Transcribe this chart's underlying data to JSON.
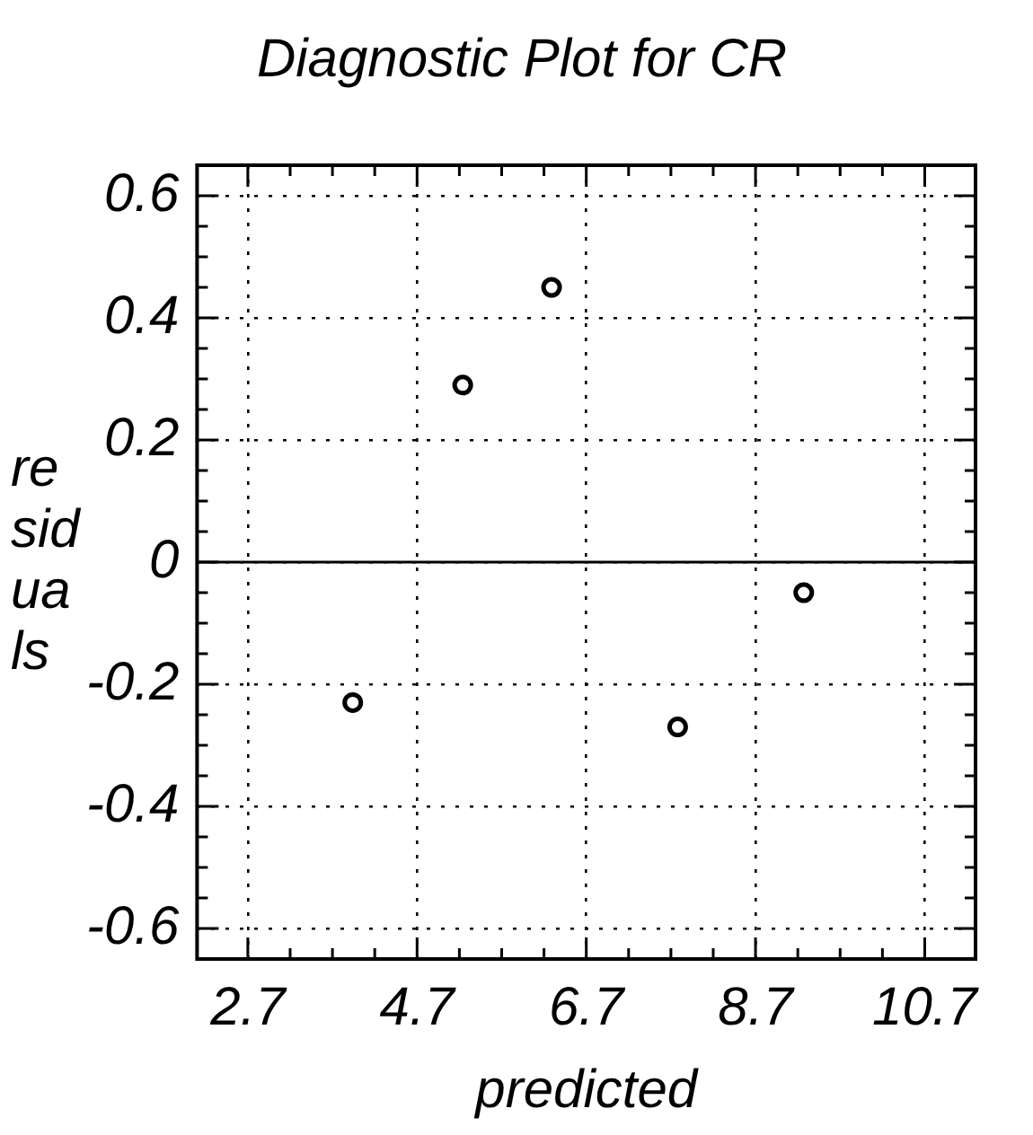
{
  "chart_data": {
    "type": "scatter",
    "title": "Diagnostic Plot for CR",
    "xlabel": "predicted",
    "ylabel": "residuals",
    "x": [
      3.94,
      5.24,
      6.29,
      7.78,
      9.27
    ],
    "values": [
      -0.23,
      0.29,
      0.45,
      -0.27,
      -0.05
    ],
    "color": "#000000",
    "marker": "circle",
    "xlim": [
      2.1,
      11.3
    ],
    "xticks": [
      2.7,
      {
        "value": 3.2,
        "label": null
      },
      {
        "value": 3.7,
        "label": null
      },
      {
        "value": 4.2,
        "label": null
      },
      4.7,
      {
        "value": 5.2,
        "label": null
      },
      {
        "value": 5.7,
        "label": null
      },
      {
        "value": 6.2,
        "label": null
      },
      6.7,
      {
        "value": 7.2,
        "label": null
      },
      {
        "value": 7.7,
        "label": null
      },
      {
        "value": 8.2,
        "label": null
      },
      8.7,
      {
        "value": 9.2,
        "label": null
      },
      {
        "value": 9.7,
        "label": null
      },
      {
        "value": 10.2,
        "label": null
      },
      10.7
    ],
    "ylim": [
      -0.65,
      0.65
    ],
    "yticks": [
      -0.6,
      {
        "value": -0.55,
        "label": null
      },
      {
        "value": -0.5,
        "label": null
      },
      {
        "value": -0.45,
        "label": null
      },
      -0.4,
      {
        "value": -0.35,
        "label": null
      },
      {
        "value": -0.3,
        "label": null
      },
      {
        "value": -0.25,
        "label": null
      },
      -0.2,
      {
        "value": -0.15,
        "label": null
      },
      {
        "value": -0.1,
        "label": null
      },
      {
        "value": -0.05,
        "label": null
      },
      0,
      {
        "value": 0.05,
        "label": null
      },
      {
        "value": 0.1,
        "label": null
      },
      {
        "value": 0.15,
        "label": null
      },
      0.2,
      {
        "value": 0.25,
        "label": null
      },
      {
        "value": 0.3,
        "label": null
      },
      {
        "value": 0.35,
        "label": null
      },
      0.4,
      {
        "value": 0.45,
        "label": null
      },
      {
        "value": 0.5,
        "label": null
      },
      {
        "value": 0.55,
        "label": null
      },
      0.6
    ],
    "grid": true,
    "ref_lines": [
      {
        "axis": "y",
        "value": 0,
        "color": "#000000",
        "line_style": "solid"
      }
    ]
  }
}
